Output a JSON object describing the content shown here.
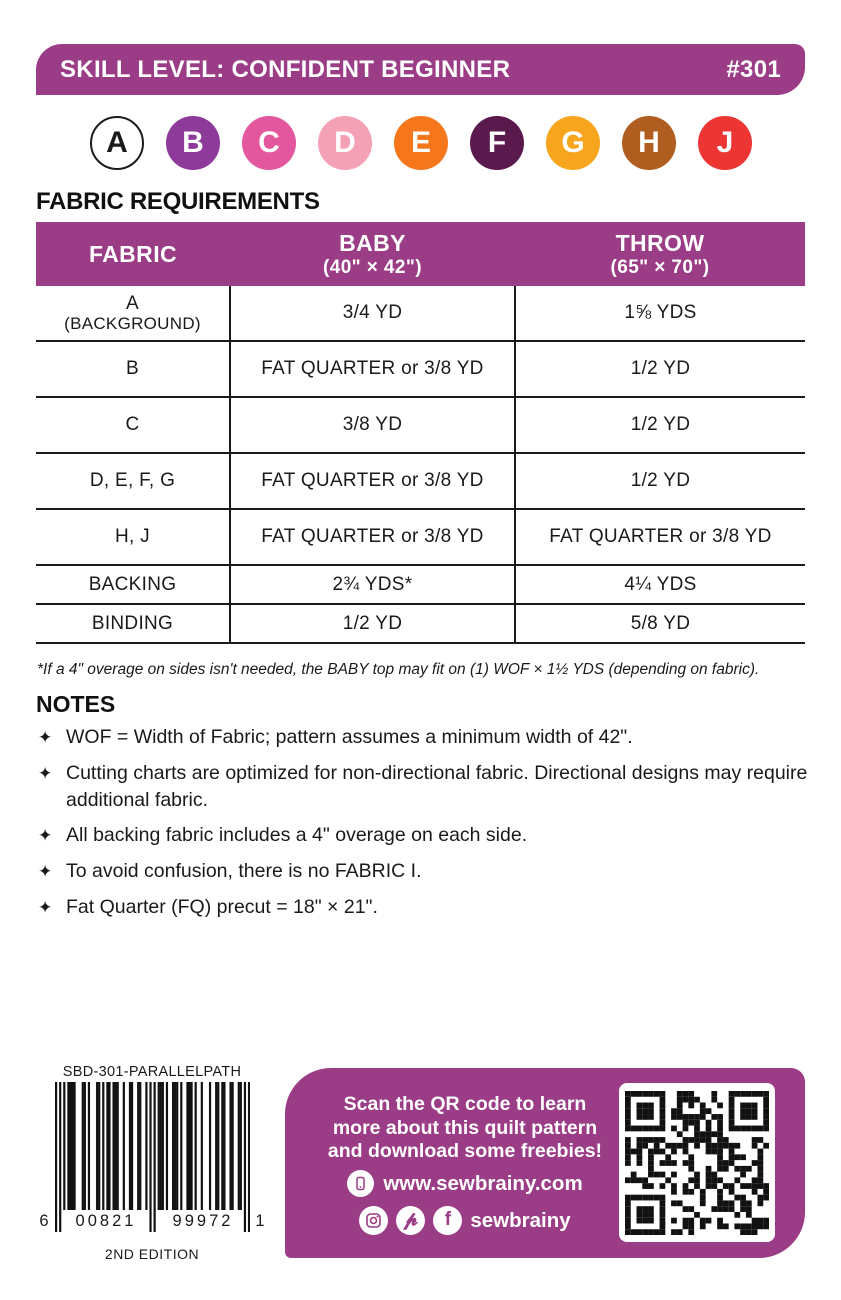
{
  "colors": {
    "purple": "#9B3C86",
    "ink": "#1A1A1A"
  },
  "header": {
    "title": "SKILL LEVEL: CONFIDENT BEGINNER",
    "pattern_number": "#301"
  },
  "swatches": [
    {
      "letter": "A",
      "fill": "#FFFFFF",
      "text": "#1A1A1A",
      "border": "#1A1A1A"
    },
    {
      "letter": "B",
      "fill": "#8E3A9B",
      "text": "#FFFFFF",
      "border": "transparent"
    },
    {
      "letter": "C",
      "fill": "#E2579D",
      "text": "#FFFFFF",
      "border": "transparent"
    },
    {
      "letter": "D",
      "fill": "#F4A0B5",
      "text": "#FFFFFF",
      "border": "transparent"
    },
    {
      "letter": "E",
      "fill": "#F5761B",
      "text": "#FFFFFF",
      "border": "transparent"
    },
    {
      "letter": "F",
      "fill": "#5B1A4D",
      "text": "#FFFFFF",
      "border": "transparent"
    },
    {
      "letter": "G",
      "fill": "#F7A51C",
      "text": "#FFFFFF",
      "border": "transparent"
    },
    {
      "letter": "H",
      "fill": "#B05E20",
      "text": "#FFFFFF",
      "border": "transparent"
    },
    {
      "letter": "J",
      "fill": "#ED3533",
      "text": "#FFFFFF",
      "border": "transparent"
    }
  ],
  "fabric_section": {
    "title": "FABRIC REQUIREMENTS",
    "table": {
      "col1_header": "FABRIC",
      "col2_header_line1": "BABY",
      "col2_header_line2": "(40\" × 42\")",
      "col3_header_line1": "THROW",
      "col3_header_line2": "(65\" × 70\")",
      "rows": [
        {
          "fabric": "A",
          "fabric_line2": "(BACKGROUND)",
          "baby": "3/4 YD",
          "throw": "1⅝ YDS"
        },
        {
          "fabric": "B",
          "baby": "FAT QUARTER or 3/8 YD",
          "throw": "1/2 YD"
        },
        {
          "fabric": "C",
          "baby": "3/8 YD",
          "throw": "1/2 YD"
        },
        {
          "fabric": "D, E, F, G",
          "baby": "FAT QUARTER or 3/8 YD",
          "throw": "1/2 YD"
        },
        {
          "fabric": "H, J",
          "baby": "FAT QUARTER or 3/8 YD",
          "throw": "FAT QUARTER or 3/8 YD"
        },
        {
          "fabric": "BACKING",
          "baby": "2¾ YDS*",
          "throw": "4¼ YDS"
        },
        {
          "fabric": "BINDING",
          "baby": "1/2 YD",
          "throw": "5/8 YD"
        }
      ]
    },
    "footnote": "*If a 4\" overage on sides isn't needed, the BABY top may fit on (1) WOF × 1½ YDS (depending on fabric)."
  },
  "notes": {
    "title": "NOTES",
    "bullet": "✦",
    "items": [
      "WOF = Width of Fabric; pattern assumes a minimum width of 42\".",
      "Cutting charts are optimized for non-directional fabric. Directional designs may require additional fabric.",
      "All backing fabric includes a 4\" overage on each side.",
      "To avoid confusion, there is no FABRIC I.",
      "Fat Quarter (FQ) precut = 18\" × 21\"."
    ]
  },
  "barcode": {
    "sku": "SBD-301-PARALLELPATH",
    "digit_left": "6",
    "digit_group1": "00821",
    "digit_group2": "99972",
    "digit_right": "1",
    "edition": "2ND EDITION",
    "modules": "10101011110001101000110101101110010011001100101010111010011101001110100100010011011001100110101"
  },
  "promo": {
    "message_line1": "Scan the QR code to learn",
    "message_line2": "more about this quilt pattern",
    "message_line3": "and download some freebies!",
    "website": "www.sewbrainy.com",
    "social_handle": "sewbrainy"
  }
}
